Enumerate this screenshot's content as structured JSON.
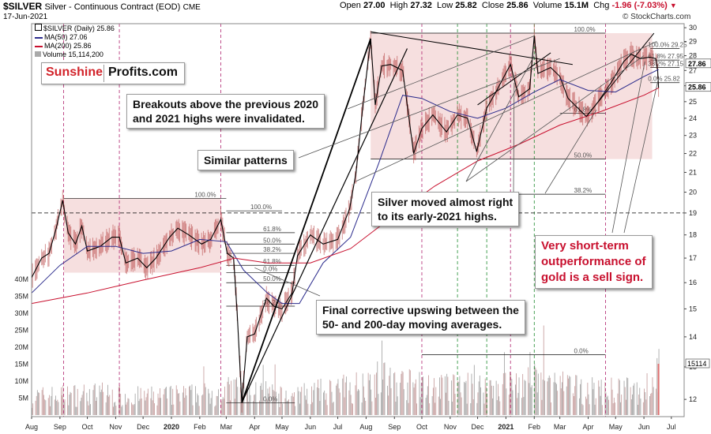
{
  "header": {
    "symbol": "$SILVER",
    "subtitle": "Silver - Continuous Contract (EOD)",
    "exchange": "CME",
    "date": "17-Jun-2021",
    "open_label": "Open",
    "open": "27.00",
    "high_label": "High",
    "high": "27.32",
    "low_label": "Low",
    "low": "25.82",
    "close_label": "Close",
    "close": "25.86",
    "volume_label": "Volume",
    "volume": "15.1M",
    "change_label": "Chg",
    "change": "-1.96 (-7.03%)",
    "watermark": "© StockCharts.com"
  },
  "legend": {
    "price": "$SILVER (Daily) 25.86",
    "ma50": "MA(50) 27.06",
    "ma200": "MA(200) 25.86",
    "volume": "Volume 15,114,200"
  },
  "logo": {
    "part1": "Sunshine",
    "part2": "Profits.com"
  },
  "annotations": {
    "breakouts": [
      "Breakouts above the previous 2020",
      "and 2021 highs were invalidated."
    ],
    "similar": [
      "Similar patterns"
    ],
    "almost": [
      "Silver moved almost right",
      "to its early-2021 highs."
    ],
    "final": [
      "Final corrective upswing between the",
      "50- and 200-day moving averages."
    ],
    "outperf": [
      "Very short-term",
      "outperformance of",
      "gold is a sell sign."
    ]
  },
  "colors": {
    "price": "#000000",
    "ma50": "#2b2b8c",
    "ma200": "#c8102e",
    "box_fill": "#f3d6d6",
    "volume_bar": "#a9a9a9",
    "red_line": "#b0226e",
    "green_line": "#1e8b2e"
  },
  "chart_data": {
    "type": "line",
    "title": "$SILVER Silver - Continuous Contract (EOD)",
    "y_scale": "log",
    "ylim": [
      11.5,
      30.3
    ],
    "price_ticks": [
      12,
      13,
      14,
      15,
      16,
      17,
      18,
      19,
      20,
      21,
      22,
      23,
      24,
      25,
      26,
      27,
      28,
      29,
      30
    ],
    "price_tick_labels": [
      "12",
      "13",
      "14",
      "15",
      "16",
      "17",
      "18",
      "19",
      "20",
      "21",
      "22",
      "23",
      "24",
      "25",
      "26",
      "27",
      "28",
      "29",
      "30"
    ],
    "volume_ticks": [
      "5M",
      "10M",
      "15M",
      "20M",
      "25M",
      "30M",
      "35M",
      "40M"
    ],
    "volume_tick_values": [
      5,
      10,
      15,
      20,
      25,
      30,
      35,
      40
    ],
    "x_start": "2019-08-01",
    "x_end": "2021-07-15",
    "x_labels": [
      {
        "d": "2019-08-01",
        "t": "Aug"
      },
      {
        "d": "2019-09-01",
        "t": "Sep"
      },
      {
        "d": "2019-10-01",
        "t": "Oct"
      },
      {
        "d": "2019-11-01",
        "t": "Nov"
      },
      {
        "d": "2019-12-01",
        "t": "Dec"
      },
      {
        "d": "2020-01-01",
        "t": "2020"
      },
      {
        "d": "2020-02-01",
        "t": "Feb"
      },
      {
        "d": "2020-03-01",
        "t": "Mar"
      },
      {
        "d": "2020-04-01",
        "t": "Apr"
      },
      {
        "d": "2020-05-01",
        "t": "May"
      },
      {
        "d": "2020-06-01",
        "t": "Jun"
      },
      {
        "d": "2020-07-01",
        "t": "Jul"
      },
      {
        "d": "2020-08-01",
        "t": "Aug"
      },
      {
        "d": "2020-09-01",
        "t": "Sep"
      },
      {
        "d": "2020-10-01",
        "t": "Oct"
      },
      {
        "d": "2020-11-01",
        "t": "Nov"
      },
      {
        "d": "2020-12-01",
        "t": "Dec"
      },
      {
        "d": "2021-01-01",
        "t": "2021"
      },
      {
        "d": "2021-02-01",
        "t": "Feb"
      },
      {
        "d": "2021-03-01",
        "t": "Mar"
      },
      {
        "d": "2021-04-01",
        "t": "Apr"
      },
      {
        "d": "2021-05-01",
        "t": "May"
      },
      {
        "d": "2021-06-01",
        "t": "Jun"
      },
      {
        "d": "2021-07-01",
        "t": "Jul"
      }
    ],
    "price_path": [
      [
        "2019-08-01",
        16.2
      ],
      [
        "2019-08-12",
        17.0
      ],
      [
        "2019-08-20",
        17.2
      ],
      [
        "2019-08-28",
        18.3
      ],
      [
        "2019-09-04",
        19.6
      ],
      [
        "2019-09-10",
        18.1
      ],
      [
        "2019-09-18",
        17.6
      ],
      [
        "2019-09-25",
        18.4
      ],
      [
        "2019-10-01",
        17.3
      ],
      [
        "2019-10-15",
        17.5
      ],
      [
        "2019-10-28",
        17.9
      ],
      [
        "2019-11-05",
        17.9
      ],
      [
        "2019-11-12",
        16.8
      ],
      [
        "2019-11-25",
        17.0
      ],
      [
        "2019-12-05",
        16.6
      ],
      [
        "2019-12-15",
        17.0
      ],
      [
        "2019-12-30",
        17.9
      ],
      [
        "2020-01-08",
        18.3
      ],
      [
        "2020-01-20",
        18.0
      ],
      [
        "2020-02-03",
        17.6
      ],
      [
        "2020-02-13",
        17.8
      ],
      [
        "2020-02-24",
        18.7
      ],
      [
        "2020-03-02",
        17.2
      ],
      [
        "2020-03-09",
        17.0
      ],
      [
        "2020-03-13",
        14.8
      ],
      [
        "2020-03-18",
        11.9
      ],
      [
        "2020-03-24",
        14.0
      ],
      [
        "2020-04-01",
        14.1
      ],
      [
        "2020-04-14",
        15.4
      ],
      [
        "2020-04-22",
        15.1
      ],
      [
        "2020-05-01",
        15.0
      ],
      [
        "2020-05-12",
        15.6
      ],
      [
        "2020-05-18",
        17.1
      ],
      [
        "2020-06-01",
        18.0
      ],
      [
        "2020-06-15",
        17.6
      ],
      [
        "2020-07-01",
        17.8
      ],
      [
        "2020-07-14",
        19.2
      ],
      [
        "2020-07-21",
        21.0
      ],
      [
        "2020-07-28",
        24.5
      ],
      [
        "2020-08-06",
        29.2
      ],
      [
        "2020-08-11",
        24.8
      ],
      [
        "2020-08-18",
        27.3
      ],
      [
        "2020-08-28",
        27.4
      ],
      [
        "2020-09-10",
        27.0
      ],
      [
        "2020-09-22",
        22.0
      ],
      [
        "2020-10-01",
        23.4
      ],
      [
        "2020-10-13",
        24.2
      ],
      [
        "2020-10-28",
        23.2
      ],
      [
        "2020-11-09",
        24.2
      ],
      [
        "2020-11-20",
        24.0
      ],
      [
        "2020-11-30",
        22.1
      ],
      [
        "2020-12-11",
        24.6
      ],
      [
        "2020-12-21",
        25.6
      ],
      [
        "2021-01-06",
        27.4
      ],
      [
        "2021-01-15",
        25.3
      ],
      [
        "2021-01-27",
        25.8
      ],
      [
        "2021-02-01",
        29.4
      ],
      [
        "2021-02-05",
        26.8
      ],
      [
        "2021-02-19",
        27.2
      ],
      [
        "2021-03-01",
        26.6
      ],
      [
        "2021-03-10",
        25.2
      ],
      [
        "2021-03-30",
        24.1
      ],
      [
        "2021-04-12",
        25.0
      ],
      [
        "2021-04-26",
        26.2
      ],
      [
        "2021-05-10",
        27.6
      ],
      [
        "2021-05-18",
        28.1
      ],
      [
        "2021-05-28",
        27.8
      ],
      [
        "2021-06-07",
        27.9
      ],
      [
        "2021-06-14",
        27.8
      ],
      [
        "2021-06-16",
        27.0
      ],
      [
        "2021-06-17",
        25.86
      ]
    ],
    "ma50_path": [
      [
        "2019-08-01",
        15.6
      ],
      [
        "2019-09-01",
        16.7
      ],
      [
        "2019-10-01",
        17.5
      ],
      [
        "2019-11-01",
        17.5
      ],
      [
        "2019-12-01",
        17.2
      ],
      [
        "2020-01-01",
        17.3
      ],
      [
        "2020-02-01",
        17.8
      ],
      [
        "2020-03-01",
        17.7
      ],
      [
        "2020-03-20",
        16.5
      ],
      [
        "2020-04-15",
        15.6
      ],
      [
        "2020-05-01",
        15.2
      ],
      [
        "2020-05-20",
        15.2
      ],
      [
        "2020-06-15",
        16.8
      ],
      [
        "2020-07-15",
        17.9
      ],
      [
        "2020-08-15",
        21.5
      ],
      [
        "2020-09-10",
        25.4
      ],
      [
        "2020-10-01",
        25.2
      ],
      [
        "2020-11-01",
        24.4
      ],
      [
        "2020-12-01",
        24.0
      ],
      [
        "2021-01-01",
        24.6
      ],
      [
        "2021-02-01",
        25.6
      ],
      [
        "2021-03-01",
        26.4
      ],
      [
        "2021-04-01",
        25.7
      ],
      [
        "2021-05-01",
        25.6
      ],
      [
        "2021-06-01",
        26.6
      ],
      [
        "2021-06-17",
        27.06
      ]
    ],
    "ma200_path": [
      [
        "2019-08-01",
        15.2
      ],
      [
        "2019-10-01",
        15.6
      ],
      [
        "2019-12-01",
        16.1
      ],
      [
        "2020-02-01",
        16.6
      ],
      [
        "2020-03-10",
        17.0
      ],
      [
        "2020-04-15",
        16.8
      ],
      [
        "2020-06-01",
        16.8
      ],
      [
        "2020-07-15",
        17.4
      ],
      [
        "2020-09-01",
        18.9
      ],
      [
        "2020-10-15",
        20.3
      ],
      [
        "2020-12-01",
        21.6
      ],
      [
        "2021-01-15",
        22.5
      ],
      [
        "2021-03-01",
        23.6
      ],
      [
        "2021-04-15",
        24.4
      ],
      [
        "2021-06-01",
        25.4
      ],
      [
        "2021-06-17",
        25.86
      ]
    ],
    "volume_profile": [
      [
        "2019-08-01",
        6
      ],
      [
        "2019-10-01",
        7
      ],
      [
        "2019-12-01",
        6
      ],
      [
        "2020-02-15",
        7
      ],
      [
        "2020-03-15",
        9
      ],
      [
        "2020-05-01",
        6
      ],
      [
        "2020-07-15",
        9
      ],
      [
        "2020-08-15",
        12
      ],
      [
        "2020-10-01",
        9
      ],
      [
        "2020-12-01",
        9
      ],
      [
        "2021-02-01",
        11
      ],
      [
        "2021-04-01",
        8
      ],
      [
        "2021-06-01",
        8
      ],
      [
        "2021-06-17",
        15
      ]
    ],
    "volume_last": 15114200,
    "fib_levels": [
      {
        "label": "100.0%",
        "price": 19.7,
        "from": "2019-09-05",
        "to": "2020-03-01"
      },
      {
        "label": "61.8%",
        "price": 18.1,
        "from": "2020-03-01",
        "to": "2020-05-15"
      },
      {
        "label": "50.0%",
        "price": 17.6,
        "from": "2020-03-01",
        "to": "2020-05-15"
      },
      {
        "label": "38.2%",
        "price": 17.2,
        "from": "2020-03-01",
        "to": "2020-05-15"
      },
      {
        "label": "61.8%",
        "price": 16.7,
        "from": "2020-03-01",
        "to": "2020-05-15"
      },
      {
        "label": "0.0%",
        "price": 16.4,
        "from": "2020-03-01",
        "to": "2020-05-15"
      },
      {
        "label": "50.0%",
        "price": 16.0,
        "from": "2020-03-01",
        "to": "2020-05-15"
      },
      {
        "label": "38.2%",
        "price": 15.1,
        "from": "2020-03-01",
        "to": "2020-05-15"
      },
      {
        "label": "0.0%",
        "price": 11.9,
        "from": "2020-03-01",
        "to": "2020-05-15"
      },
      {
        "label": "100.0%",
        "price": 19.1,
        "from": "2020-03-01",
        "to": "2020-05-01"
      },
      {
        "label": "100.0%",
        "price": 29.6,
        "from": "2020-08-06",
        "to": "2021-04-20"
      },
      {
        "label": "61.8%",
        "price": 24.3,
        "from": "2021-03-01",
        "to": "2021-04-20"
      },
      {
        "label": "50.0%",
        "price": 21.7,
        "from": "2020-08-06",
        "to": "2021-04-20"
      },
      {
        "label": "38.2%",
        "price": 19.9,
        "from": "2020-09-01",
        "to": "2021-04-20"
      },
      {
        "label": "0.0%",
        "price": 13.4,
        "from": "2020-10-01",
        "to": "2021-04-20"
      },
      {
        "label": "100.0% 29.25",
        "price": 28.5,
        "from": "2021-06-08",
        "to": "2021-07-10"
      },
      {
        "label": "61.8% 27.95",
        "price": 27.7,
        "from": "2021-06-08",
        "to": "2021-07-10"
      },
      {
        "label": "38.2% 27.15",
        "price": 27.2,
        "from": "2021-06-08",
        "to": "2021-07-10"
      },
      {
        "label": "0.0% 25.82",
        "price": 26.2,
        "from": "2021-06-08",
        "to": "2021-07-10"
      }
    ],
    "price_tags": [
      {
        "label": "27.86",
        "price": 27.45
      },
      {
        "label": "25.86",
        "price": 25.9
      }
    ],
    "volume_tag": "15114",
    "dashed_level": 19.0,
    "boxes": [
      {
        "from": "2019-09-05",
        "to": "2020-02-24",
        "top": 19.7,
        "bottom": 16.4
      },
      {
        "from": "2020-08-06",
        "to": "2021-06-10",
        "top": 29.6,
        "bottom": 21.7
      }
    ],
    "red_verticals": [
      "2019-09-05",
      "2019-11-05",
      "2020-02-24",
      "2020-10-01",
      "2021-01-06",
      "2021-04-20"
    ],
    "green_verticals": [
      "2020-11-09",
      "2020-12-11",
      "2021-02-01"
    ],
    "trendlines": [
      {
        "from": [
          "2020-03-18",
          11.9
        ],
        "to": [
          "2020-08-06",
          29.2
        ],
        "w": 1.8
      },
      {
        "from": [
          "2020-03-18",
          11.9
        ],
        "to": [
          "2020-09-15",
          28.5
        ],
        "w": 1.2
      },
      {
        "from": [
          "2020-08-06",
          29.7
        ],
        "to": [
          "2021-03-15",
          27.4
        ],
        "w": 1
      },
      {
        "from": [
          "2020-12-01",
          24.8
        ],
        "to": [
          "2021-02-19",
          28.2
        ],
        "w": 1
      },
      {
        "from": [
          "2021-03-30",
          24.1
        ],
        "to": [
          "2021-06-12",
          29.6
        ],
        "w": 1
      }
    ],
    "pointers": [
      {
        "from": [
          440,
          138
        ],
        "to": [
          "2021-02-01",
          29.4
        ]
      },
      {
        "from": [
          378,
          200
        ],
        "to": [
          "2021-03-01",
          27.8
        ]
      },
      {
        "from": [
          590,
          230
        ],
        "to": [
          "2021-06-01",
          28.0
        ]
      },
      {
        "from": [
          590,
          230
        ],
        "to": [
          "2021-02-01",
          28.0
        ]
      },
      {
        "from": [
          450,
          230
        ],
        "to": [
          "2021-06-15",
          29.0
        ]
      },
      {
        "from": [
          790,
          295
        ],
        "to": [
          "2021-06-17",
          26.5
        ]
      },
      {
        "from": [
          775,
          295
        ],
        "to": [
          "2021-06-02",
          27.6
        ]
      },
      {
        "from": [
          690,
          245
        ],
        "to": [
          "2021-04-10",
          24.5
        ]
      },
      {
        "from": [
          650,
          245
        ],
        "to": [
          "2021-01-10",
          26.2
        ]
      },
      {
        "from": [
          405,
          375
        ],
        "to": [
          "2020-04-01",
          16.6
        ]
      }
    ]
  }
}
